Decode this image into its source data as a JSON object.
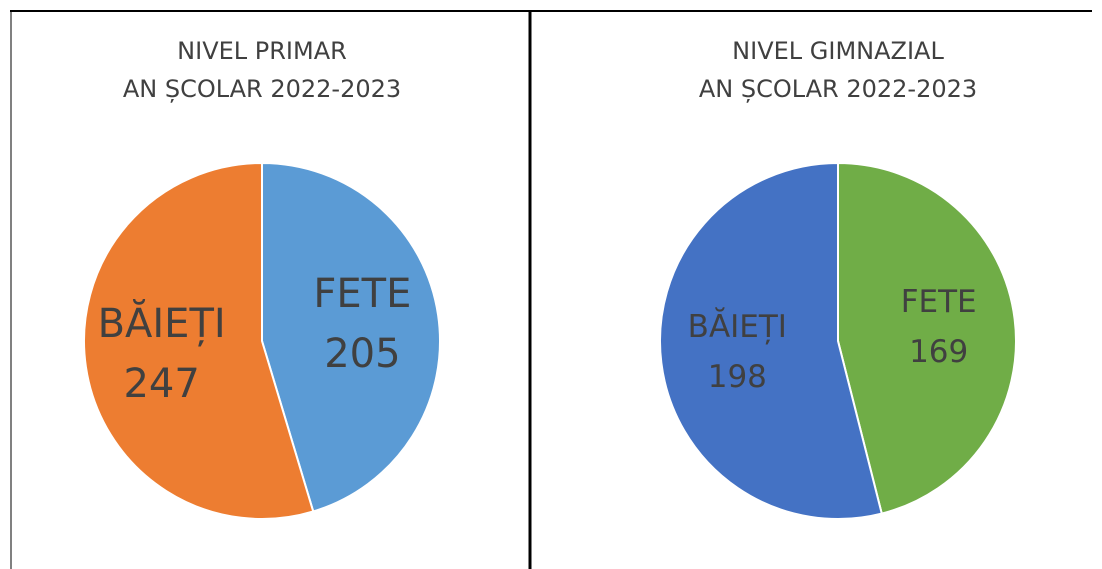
{
  "chart_data": [
    {
      "type": "pie",
      "title": [
        "NIVEL PRIMAR",
        "AN ȘCOLAR 2022-2023"
      ],
      "categories": [
        "FETE",
        "BĂIEȚI"
      ],
      "values": [
        205,
        247
      ],
      "colors": [
        "#5b9bd5",
        "#ed7d31"
      ]
    },
    {
      "type": "pie",
      "title": [
        "NIVEL GIMNAZIAL",
        "AN ȘCOLAR 2022-2023"
      ],
      "categories": [
        "FETE",
        "BĂIEȚI"
      ],
      "values": [
        169,
        198
      ],
      "colors": [
        "#70ad47",
        "#4472c4"
      ]
    }
  ]
}
